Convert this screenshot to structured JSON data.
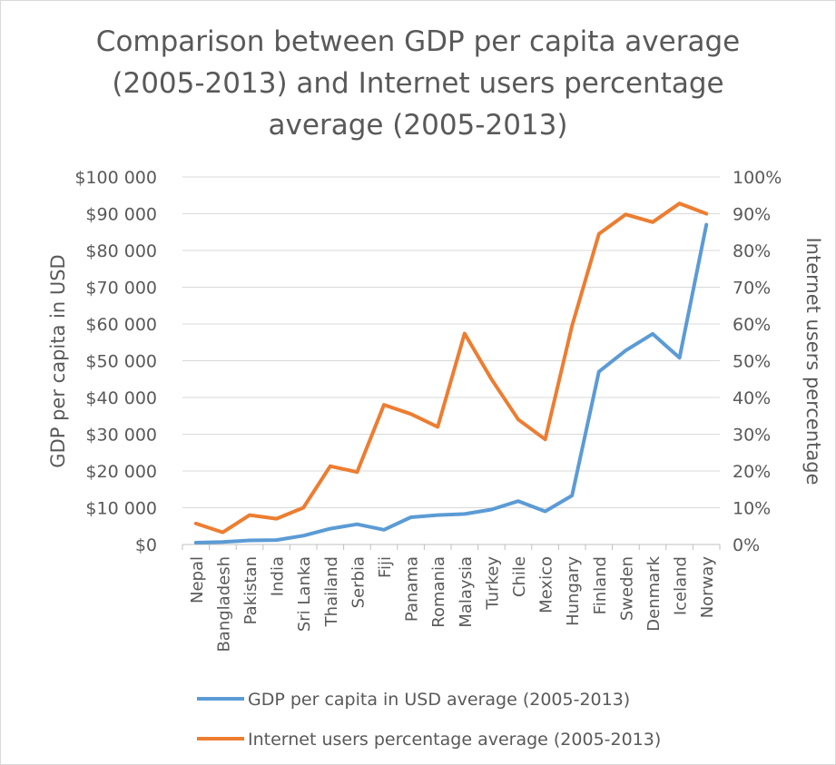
{
  "chart_data": {
    "type": "line",
    "title_lines": [
      "Comparison between GDP per capita average",
      "(2005-2013) and Internet users percentage",
      "average (2005-2013)"
    ],
    "categories": [
      "Nepal",
      "Bangladesh",
      "Pakistan",
      "India",
      "Sri Lanka",
      "Thailand",
      "Serbia",
      "Fiji",
      "Panama",
      "Romania",
      "Malaysia",
      "Turkey",
      "Chile",
      "Mexico",
      "Hungary",
      "Finland",
      "Sweden",
      "Denmark",
      "Iceland",
      "Norway"
    ],
    "ylabel_left": "GDP per capita in USD",
    "ylabel_right": "Internet users percentage",
    "ylim_left": [
      0,
      100000
    ],
    "ylim_right": [
      0,
      100
    ],
    "left_ticks": [
      {
        "value": 0,
        "label": "$0"
      },
      {
        "value": 10000,
        "label": "$10 000"
      },
      {
        "value": 20000,
        "label": "$20 000"
      },
      {
        "value": 30000,
        "label": "$30 000"
      },
      {
        "value": 40000,
        "label": "$40 000"
      },
      {
        "value": 50000,
        "label": "$50 000"
      },
      {
        "value": 60000,
        "label": "$60 000"
      },
      {
        "value": 70000,
        "label": "$70 000"
      },
      {
        "value": 80000,
        "label": "$80 000"
      },
      {
        "value": 90000,
        "label": "$90 000"
      },
      {
        "value": 100000,
        "label": "$100 000"
      }
    ],
    "right_ticks": [
      {
        "value": 0,
        "label": "0%"
      },
      {
        "value": 10,
        "label": "10%"
      },
      {
        "value": 20,
        "label": "20%"
      },
      {
        "value": 30,
        "label": "30%"
      },
      {
        "value": 40,
        "label": "40%"
      },
      {
        "value": 50,
        "label": "50%"
      },
      {
        "value": 60,
        "label": "60%"
      },
      {
        "value": 70,
        "label": "70%"
      },
      {
        "value": 80,
        "label": "80%"
      },
      {
        "value": 90,
        "label": "90%"
      },
      {
        "value": 100,
        "label": "100%"
      }
    ],
    "grid": true,
    "legend_position": "bottom",
    "series": [
      {
        "name": "GDP per capita in USD average (2005-2013)",
        "axis": "left",
        "color": "#5b9bd5",
        "values": [
          500,
          700,
          1100,
          1200,
          2400,
          4300,
          5500,
          4000,
          7400,
          8000,
          8300,
          9500,
          11800,
          9000,
          13300,
          47000,
          52800,
          57300,
          50800,
          87000
        ]
      },
      {
        "name": "Internet users percentage average (2005-2013)",
        "axis": "right",
        "color": "#ed7d31",
        "values": [
          5.7,
          3.3,
          8.0,
          7.0,
          10.0,
          21.3,
          19.7,
          38.0,
          35.5,
          32.0,
          57.4,
          45.0,
          34.0,
          28.6,
          59.5,
          84.5,
          89.8,
          87.7,
          92.8,
          90.0
        ]
      }
    ]
  }
}
